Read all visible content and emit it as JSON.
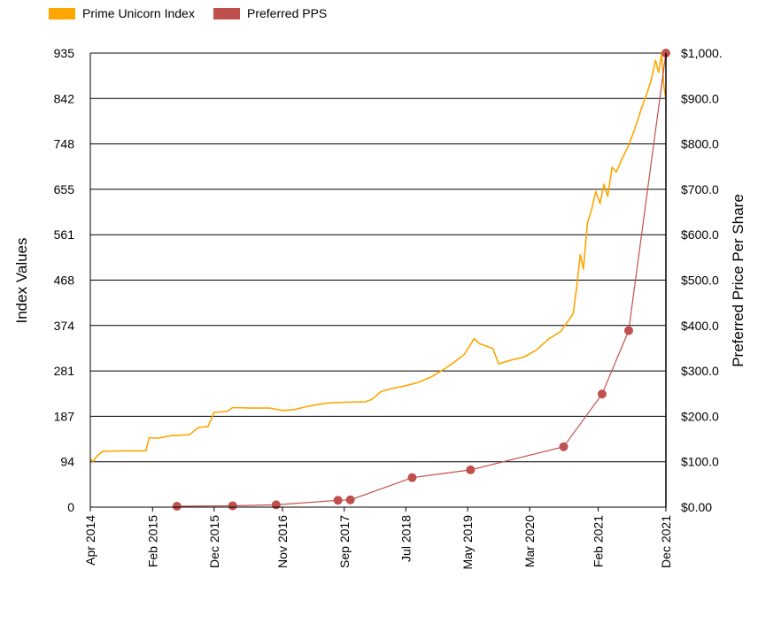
{
  "chart_data": {
    "type": "line",
    "title": "",
    "legend": {
      "placement": "top-left",
      "entries": [
        {
          "name": "Prime Unicorn Index",
          "color": "#FFA500"
        },
        {
          "name": "Preferred PPS",
          "color": "#C0504D"
        }
      ]
    },
    "grid": true,
    "x_axis": {
      "type": "date",
      "range": [
        "2014-04-01",
        "2021-12-31"
      ],
      "tick_labels": [
        "Apr 2014",
        "Feb 2015",
        "Dec 2015",
        "Nov 2016",
        "Sep 2017",
        "Jul 2018",
        "May 2019",
        "Mar 2020",
        "Feb 2021",
        "Dec 2021"
      ],
      "tick_dates": [
        "2014-04-01",
        "2015-02-01",
        "2015-12-01",
        "2016-11-01",
        "2017-09-01",
        "2018-07-01",
        "2019-05-01",
        "2020-03-01",
        "2021-02-01",
        "2021-12-31"
      ]
    },
    "y_left": {
      "label": "Index Values",
      "range": [
        0,
        935
      ],
      "tick_labels": [
        "0",
        "94",
        "187",
        "281",
        "374",
        "468",
        "561",
        "655",
        "748",
        "842",
        "935"
      ]
    },
    "y_right": {
      "label": "Preferred Price Per Share",
      "range": [
        0,
        1000
      ],
      "tick_labels": [
        "$0.00",
        "$100.0",
        "$200.0",
        "$300.0",
        "$400.0",
        "$500.0",
        "$600.0",
        "$700.0",
        "$800.0",
        "$900.0",
        "$1,000."
      ]
    },
    "series": [
      {
        "name": "Prime Unicorn Index",
        "axis": "left",
        "style": "line",
        "color": "#FFA500",
        "points": [
          [
            "2014-04-01",
            98
          ],
          [
            "2014-04-15",
            94
          ],
          [
            "2014-05-01",
            104
          ],
          [
            "2014-06-01",
            115
          ],
          [
            "2014-09-01",
            116
          ],
          [
            "2014-12-31",
            116
          ],
          [
            "2015-01-15",
            143
          ],
          [
            "2015-03-01",
            142
          ],
          [
            "2015-05-01",
            147
          ],
          [
            "2015-08-01",
            149
          ],
          [
            "2015-09-15",
            164
          ],
          [
            "2015-11-01",
            166
          ],
          [
            "2015-12-01",
            195
          ],
          [
            "2016-02-01",
            197
          ],
          [
            "2016-03-01",
            205
          ],
          [
            "2016-06-01",
            204
          ],
          [
            "2016-09-01",
            204
          ],
          [
            "2016-11-01",
            199
          ],
          [
            "2017-01-01",
            201
          ],
          [
            "2017-03-01",
            207
          ],
          [
            "2017-05-01",
            212
          ],
          [
            "2017-07-01",
            215
          ],
          [
            "2017-09-01",
            216
          ],
          [
            "2017-12-15",
            217
          ],
          [
            "2018-01-15",
            222
          ],
          [
            "2018-03-01",
            238
          ],
          [
            "2018-05-01",
            245
          ],
          [
            "2018-07-01",
            250
          ],
          [
            "2018-09-01",
            257
          ],
          [
            "2018-11-01",
            268
          ],
          [
            "2019-01-01",
            283
          ],
          [
            "2019-03-01",
            300
          ],
          [
            "2019-04-15",
            315
          ],
          [
            "2019-05-15",
            335
          ],
          [
            "2019-06-01",
            347
          ],
          [
            "2019-07-01",
            336
          ],
          [
            "2019-09-01",
            327
          ],
          [
            "2019-10-01",
            295
          ],
          [
            "2019-12-01",
            303
          ],
          [
            "2020-02-01",
            309
          ],
          [
            "2020-04-01",
            323
          ],
          [
            "2020-06-01",
            346
          ],
          [
            "2020-08-01",
            362
          ],
          [
            "2020-10-01",
            398
          ],
          [
            "2020-10-20",
            460
          ],
          [
            "2020-11-05",
            520
          ],
          [
            "2020-11-20",
            490
          ],
          [
            "2020-12-10",
            585
          ],
          [
            "2021-01-01",
            615
          ],
          [
            "2021-01-20",
            650
          ],
          [
            "2021-02-10",
            625
          ],
          [
            "2021-03-01",
            665
          ],
          [
            "2021-03-20",
            640
          ],
          [
            "2021-04-10",
            700
          ],
          [
            "2021-05-01",
            690
          ],
          [
            "2021-06-01",
            720
          ],
          [
            "2021-07-01",
            745
          ],
          [
            "2021-08-01",
            780
          ],
          [
            "2021-09-01",
            820
          ],
          [
            "2021-10-01",
            855
          ],
          [
            "2021-10-20",
            880
          ],
          [
            "2021-11-10",
            920
          ],
          [
            "2021-11-25",
            895
          ],
          [
            "2021-12-10",
            935
          ],
          [
            "2021-12-20",
            870
          ],
          [
            "2021-12-31",
            840
          ]
        ]
      },
      {
        "name": "Preferred PPS",
        "axis": "right",
        "style": "line+markers",
        "color": "#C0504D",
        "points": [
          [
            "2015-06-01",
            2
          ],
          [
            "2016-03-01",
            3
          ],
          [
            "2016-10-01",
            5
          ],
          [
            "2017-08-01",
            15
          ],
          [
            "2017-10-01",
            16
          ],
          [
            "2018-08-01",
            65
          ],
          [
            "2019-05-15",
            82
          ],
          [
            "2020-08-15",
            133
          ],
          [
            "2021-02-20",
            249
          ],
          [
            "2021-07-01",
            389
          ],
          [
            "2021-12-31",
            1000
          ]
        ]
      }
    ]
  }
}
